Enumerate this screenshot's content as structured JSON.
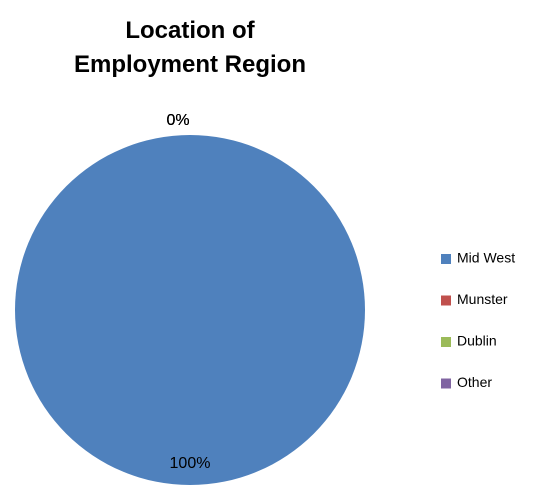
{
  "chart_data": {
    "type": "pie",
    "title": "Location of Employment Region",
    "categories": [
      "Mid West",
      "Munster",
      "Dublin",
      "Other"
    ],
    "values": [
      100,
      0,
      0,
      0
    ],
    "value_labels": [
      "100%",
      "0%",
      "0%",
      "0%"
    ],
    "colors": [
      "#4f81bd",
      "#c0504d",
      "#9bbb59",
      "#8064a2"
    ],
    "legend": "right"
  }
}
